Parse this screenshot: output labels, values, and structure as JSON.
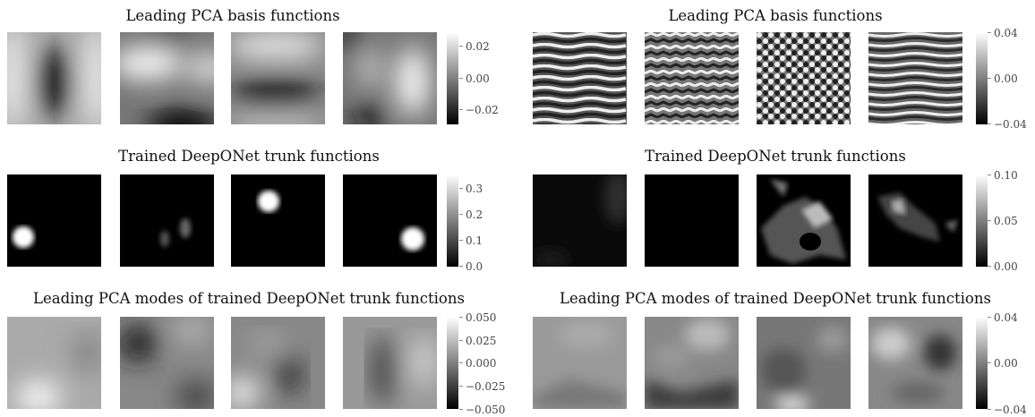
{
  "panels": [
    {
      "title": "Leading PCA basis functions",
      "colorbar_ticks": [
        "0.02",
        "0.00",
        "−0.02"
      ]
    },
    {
      "title": "Trained DeepONet trunk functions",
      "colorbar_ticks": [
        "0.3",
        "0.2",
        "0.1",
        "0.0"
      ]
    },
    {
      "title": "Leading PCA modes of trained DeepONet trunk functions",
      "colorbar_ticks": [
        "0.050",
        "0.025",
        "0.000",
        "−0.025",
        "−0.050"
      ]
    },
    {
      "title": "Leading PCA basis functions",
      "colorbar_ticks": [
        "0.04",
        "0.00",
        "−0.04"
      ]
    },
    {
      "title": "Trained DeepONet trunk functions",
      "colorbar_ticks": [
        "0.10",
        "0.05",
        "0.00"
      ]
    },
    {
      "title": "Leading PCA modes of trained DeepONet trunk functions",
      "colorbar_ticks": [
        "0.04",
        "0.00",
        "−0.04"
      ]
    }
  ],
  "chart_data": [
    {
      "type": "heatmap",
      "title": "Leading PCA basis functions",
      "images": 4,
      "colormap": "gray",
      "clim": [
        -0.03,
        0.03
      ],
      "colorbar_ticks": [
        0.02,
        0.0,
        -0.02
      ]
    },
    {
      "type": "heatmap",
      "title": "Trained DeepONet trunk functions",
      "images": 4,
      "colormap": "gray",
      "clim": [
        0.0,
        0.35
      ],
      "colorbar_ticks": [
        0.3,
        0.2,
        0.1,
        0.0
      ]
    },
    {
      "type": "heatmap",
      "title": "Leading PCA modes of trained DeepONet trunk functions",
      "images": 4,
      "colormap": "gray",
      "clim": [
        -0.05,
        0.05
      ],
      "colorbar_ticks": [
        0.05,
        0.025,
        0.0,
        -0.025,
        -0.05
      ]
    },
    {
      "type": "heatmap",
      "title": "Leading PCA basis functions",
      "images": 4,
      "colormap": "gray",
      "clim": [
        -0.04,
        0.04
      ],
      "colorbar_ticks": [
        0.04,
        0.0,
        -0.04
      ]
    },
    {
      "type": "heatmap",
      "title": "Trained DeepONet trunk functions",
      "images": 4,
      "colormap": "gray",
      "clim": [
        0.0,
        0.1
      ],
      "colorbar_ticks": [
        0.1,
        0.05,
        0.0
      ]
    },
    {
      "type": "heatmap",
      "title": "Leading PCA modes of trained DeepONet trunk functions",
      "images": 4,
      "colormap": "gray",
      "clim": [
        -0.04,
        0.04
      ],
      "colorbar_ticks": [
        0.04,
        0.0,
        -0.04
      ]
    }
  ]
}
